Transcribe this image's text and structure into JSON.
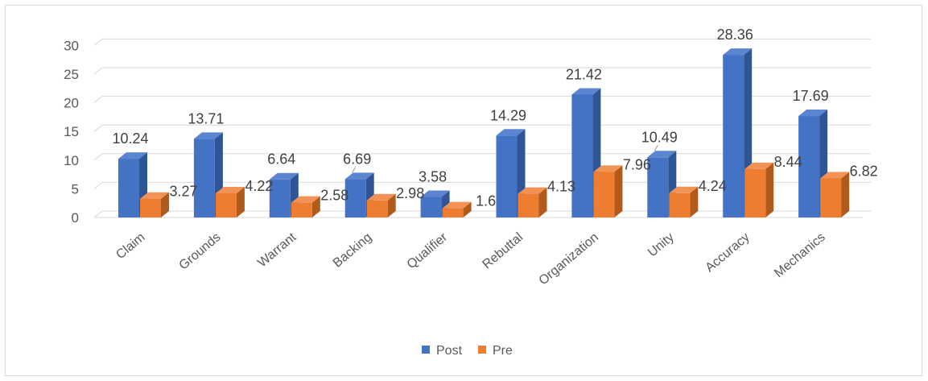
{
  "chart_data": {
    "type": "bar",
    "categories": [
      "Claim",
      "Grounds",
      "Warrant",
      "Backing",
      "Qualifier",
      "Rebuttal",
      "Organization",
      "Unity",
      "Accuracy",
      "Mechanics"
    ],
    "series": [
      {
        "name": "Post",
        "values": [
          10.24,
          13.71,
          6.64,
          6.69,
          3.58,
          14.29,
          21.42,
          10.49,
          28.36,
          17.69
        ],
        "color": "#4472c4",
        "color_dark": "#2f5597",
        "color_top": "#5b84d1"
      },
      {
        "name": "Pre",
        "values": [
          3.27,
          4.22,
          2.58,
          2.98,
          1.6,
          4.13,
          7.96,
          4.24,
          8.44,
          6.82
        ],
        "color": "#ed7d31",
        "color_dark": "#b05a1c",
        "color_top": "#f29255"
      }
    ],
    "yticks": [
      0,
      5,
      10,
      15,
      20,
      25,
      30
    ],
    "ylim": [
      0,
      30
    ],
    "grid": true,
    "legend": "bottom-center",
    "title": "",
    "xlabel": "",
    "ylabel": ""
  }
}
